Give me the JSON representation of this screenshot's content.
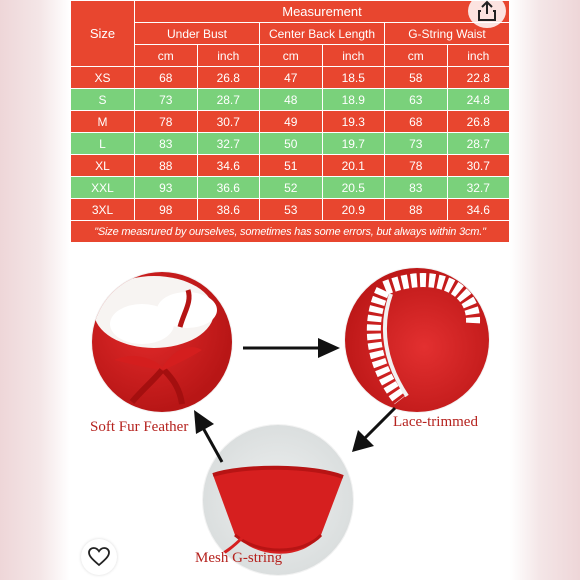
{
  "table": {
    "size_header": "Size",
    "measurement_header": "Measurement",
    "groups": [
      "Under Bust",
      "Center Back Length",
      "G-String Waist"
    ],
    "units": [
      "cm",
      "inch",
      "cm",
      "inch",
      "cm",
      "inch"
    ],
    "rows": [
      {
        "size": "XS",
        "values": [
          "68",
          "26.8",
          "47",
          "18.5",
          "58",
          "22.8"
        ]
      },
      {
        "size": "S",
        "values": [
          "73",
          "28.7",
          "48",
          "18.9",
          "63",
          "24.8"
        ]
      },
      {
        "size": "M",
        "values": [
          "78",
          "30.7",
          "49",
          "19.3",
          "68",
          "26.8"
        ]
      },
      {
        "size": "L",
        "values": [
          "83",
          "32.7",
          "50",
          "19.7",
          "73",
          "28.7"
        ]
      },
      {
        "size": "XL",
        "values": [
          "88",
          "34.6",
          "51",
          "20.1",
          "78",
          "30.7"
        ]
      },
      {
        "size": "XXL",
        "values": [
          "93",
          "36.6",
          "52",
          "20.5",
          "83",
          "32.7"
        ]
      },
      {
        "size": "3XL",
        "values": [
          "98",
          "38.6",
          "53",
          "20.9",
          "88",
          "34.6"
        ]
      }
    ],
    "note": "\"Size measrured by ourselves, sometimes has some errors, but always within 3cm.\""
  },
  "features": {
    "fur": "Soft Fur Feather",
    "lace": "Lace-trimmed",
    "mesh": "Mesh G-string"
  },
  "colors": {
    "table_red": "#e8462f",
    "table_green": "#7ad17b",
    "caption": "#b5221e"
  },
  "icons": {
    "share": "share-icon",
    "like": "heart-icon"
  }
}
